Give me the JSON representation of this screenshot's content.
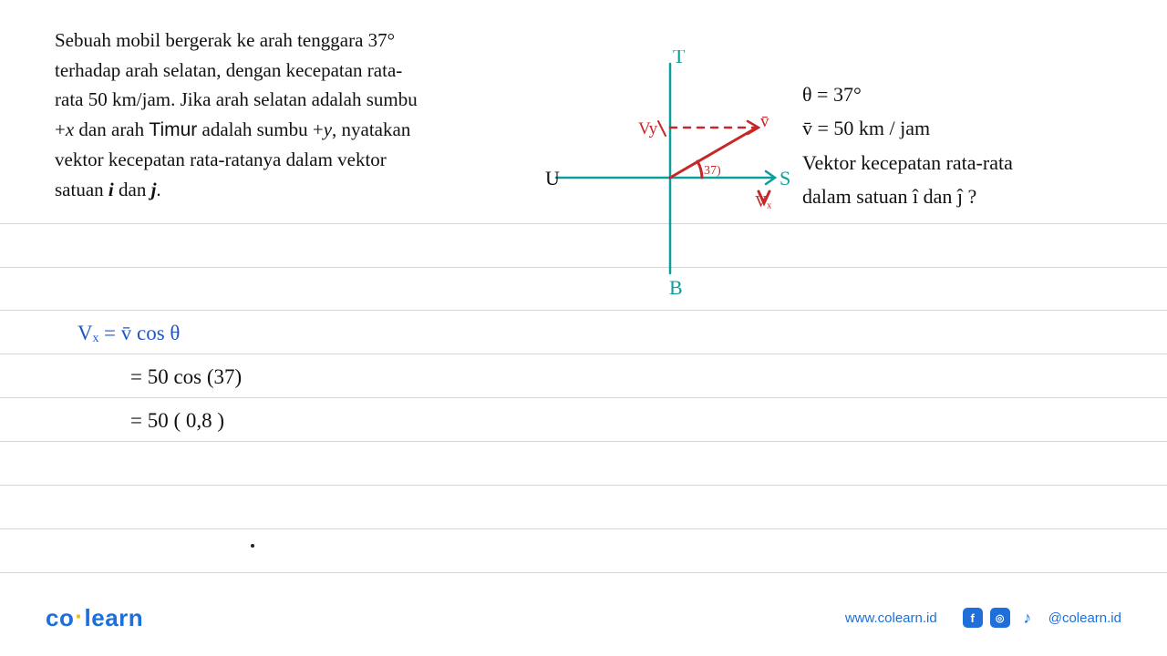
{
  "ruled_lines": [
    245,
    293,
    340,
    388,
    436,
    484,
    532,
    580,
    628
  ],
  "problem": {
    "line1": "Sebuah mobil bergerak ke arah  tenggara 37°",
    "line2": "terhadap arah selatan, dengan kecepatan rata-",
    "line3": "rata 50 km/jam. Jika arah selatan adalah sumbu",
    "line4_pre": "+",
    "line4_var1": "x",
    "line4_mid": " dan arah ",
    "line4_timor": "Timur",
    "line4_post": "  adalah sumbu +",
    "line4_var2": "y",
    "line4_end": ", nyatakan",
    "line5": "vektor  kecepatan  rata-ratanya  dalam  vektor",
    "line6_pre": "satuan ",
    "line6_i": "i",
    "line6_mid": " dan ",
    "line6_j": "j",
    "line6_end": "."
  },
  "diagram": {
    "cross_color": "#0a9e9e",
    "vector_color": "#c62828",
    "label_color": "#0a9e9e",
    "vlabel_color": "#111",
    "T": "T",
    "S": "S",
    "B": "B",
    "U": "U",
    "angle": "37)",
    "vx": "Vₓ",
    "vy": "Vy",
    "vbar": "v̄"
  },
  "right_notes": {
    "l1": "θ = 37°",
    "l2": "v̄ = 50 km / jam",
    "l3": "Vektor kecepatan rata-rata",
    "l4": "dalam satuan î dan ĵ ?"
  },
  "work": {
    "row1": "Vₓ  =  v̄  cos θ",
    "row2": "=   50  cos (37)",
    "row3": "=  50 ( 0,8 )",
    "row2_indent": 58,
    "row3_indent": 58
  },
  "footer": {
    "logo_co": "co",
    "logo_learn": "learn",
    "url": "www.colearn.id",
    "handle": "@colearn.id"
  },
  "colors": {
    "rule": "#d8d6d4",
    "text": "#111111",
    "blue_hw": "#2156c9",
    "brand": "#1e6fd9",
    "accent": "#ffb400"
  }
}
